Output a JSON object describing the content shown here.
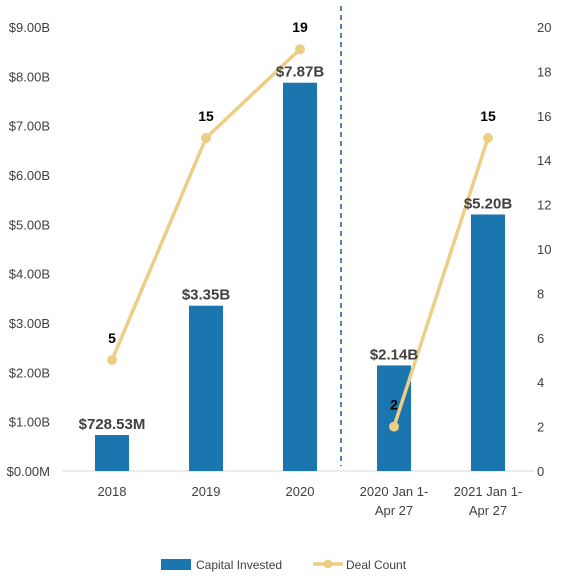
{
  "chart_data": {
    "type": "bar+line",
    "categories": [
      [
        "2018"
      ],
      [
        "2019"
      ],
      [
        "2020"
      ],
      [
        "2020 Jan 1-",
        "Apr 27"
      ],
      [
        "2021 Jan 1-",
        "Apr 27"
      ]
    ],
    "series": [
      {
        "name": "Capital Invested",
        "type": "bar",
        "axis": "left",
        "color": "#1b75ae",
        "values_billions": [
          0.72853,
          3.35,
          7.87,
          2.14,
          5.2
        ],
        "labels": [
          "$728.53M",
          "$3.35B",
          "$7.87B",
          "$2.14B",
          "$5.20B"
        ]
      },
      {
        "name": "Deal Count",
        "type": "line",
        "axis": "right",
        "color": "#edce85",
        "values": [
          5,
          15,
          19,
          2,
          15
        ],
        "labels": [
          "5",
          "15",
          "19",
          "2",
          "15"
        ],
        "segments": [
          [
            0,
            1,
            2
          ],
          [
            3,
            4
          ]
        ]
      }
    ],
    "y_left": {
      "min": 0,
      "max": 9,
      "step": 1,
      "ticks": [
        "$0.00M",
        "$1.00B",
        "$2.00B",
        "$3.00B",
        "$4.00B",
        "$5.00B",
        "$6.00B",
        "$7.00B",
        "$8.00B",
        "$9.00B"
      ]
    },
    "y_right": {
      "min": 0,
      "max": 20,
      "step": 2,
      "ticks": [
        "0",
        "2",
        "4",
        "6",
        "8",
        "10",
        "12",
        "14",
        "16",
        "18",
        "20"
      ]
    },
    "divider_after_category": 2,
    "grid": false,
    "legend_position": "bottom"
  }
}
